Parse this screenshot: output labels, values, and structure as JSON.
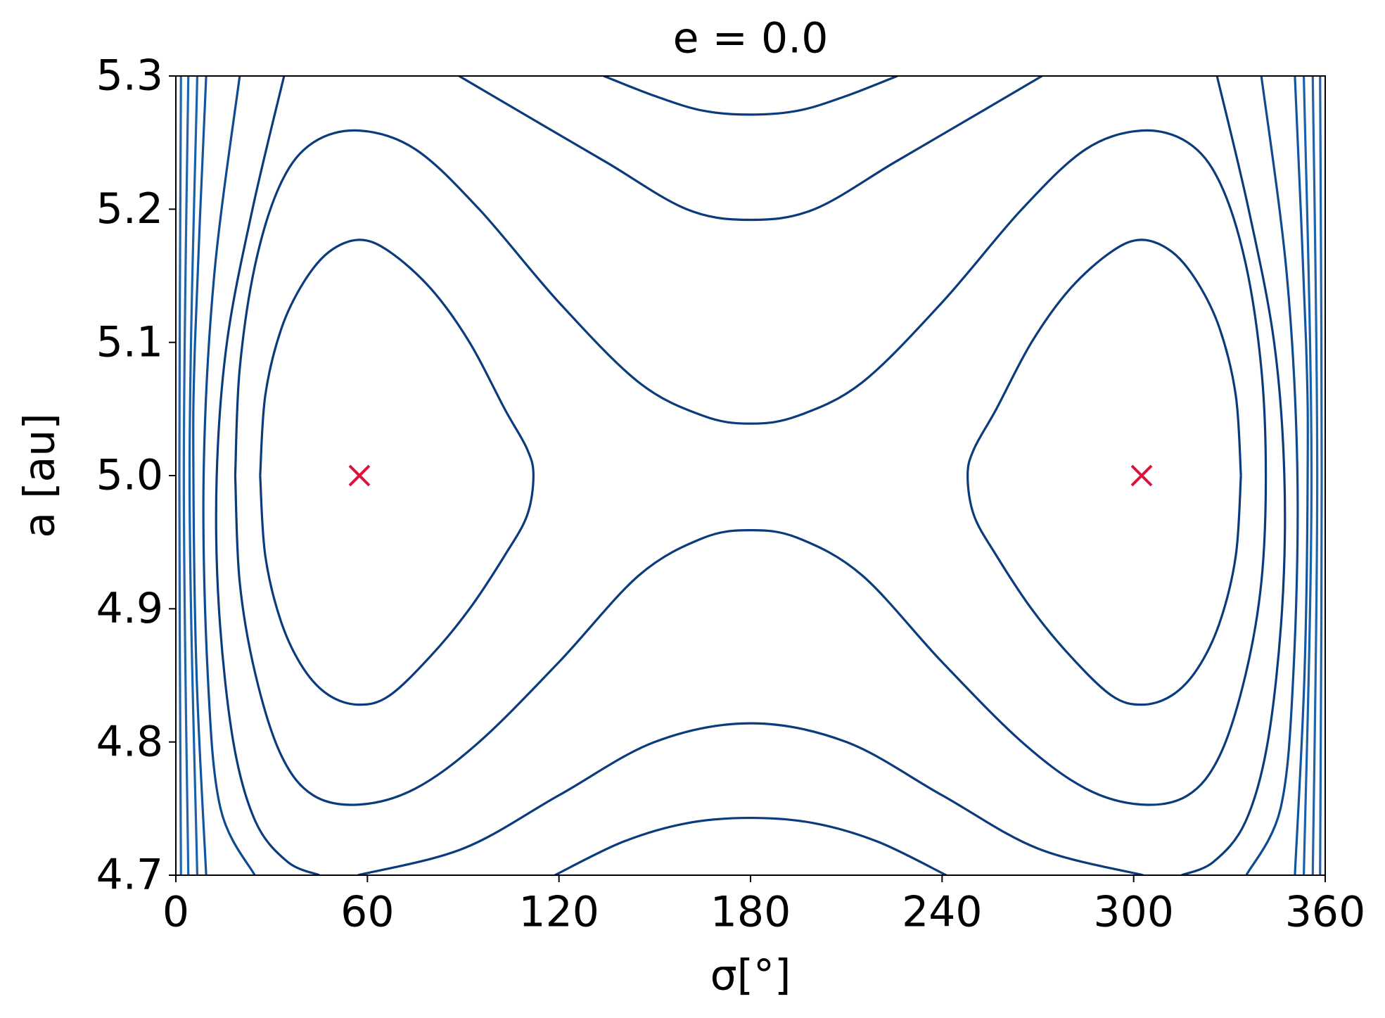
{
  "chart_data": {
    "type": "contour",
    "title": "e = 0.0",
    "xlabel": "σ[°]",
    "ylabel": "a [au]",
    "xlim": [
      0,
      360
    ],
    "ylim": [
      4.7,
      5.3
    ],
    "xticks": [
      0,
      60,
      120,
      180,
      240,
      300,
      360
    ],
    "yticks": [
      4.7,
      4.8,
      4.9,
      {
        "value": 5,
        "label": "5.0"
      },
      5.1,
      5.2,
      5.3
    ],
    "contours": [
      {
        "color": "#0a3b7c",
        "x": [
          26.4,
          28,
          33,
          40,
          48,
          57.5,
          67,
          80,
          92,
          103,
          110,
          112,
          110,
          103,
          92,
          80,
          67,
          57.5,
          48,
          40,
          33,
          28,
          26.4
        ],
        "y": [
          5.0,
          5.06,
          5.11,
          5.145,
          5.168,
          5.177,
          5.168,
          5.14,
          5.1,
          5.05,
          5.02,
          5.0,
          4.97,
          4.94,
          4.9,
          4.865,
          4.835,
          4.828,
          4.835,
          4.855,
          4.89,
          4.94,
          5.0
        ]
      },
      {
        "color": "#0a3b7c",
        "x": [
          333.6,
          332,
          327,
          320,
          312,
          302.5,
          293,
          280,
          268,
          257,
          250,
          248,
          250,
          257,
          268,
          280,
          293,
          302.5,
          312,
          320,
          327,
          332,
          333.6
        ],
        "y": [
          5.0,
          5.06,
          5.11,
          5.145,
          5.168,
          5.177,
          5.168,
          5.14,
          5.1,
          5.05,
          5.02,
          5.0,
          4.97,
          4.94,
          4.9,
          4.865,
          4.835,
          4.828,
          4.835,
          4.855,
          4.89,
          4.94,
          5.0
        ]
      },
      {
        "color": "#0a3b7c",
        "x": [
          18.6,
          20,
          25,
          33,
          43,
          57.5,
          75,
          95,
          120,
          145,
          165,
          180,
          195,
          215,
          240,
          265,
          285,
          302.5,
          317,
          327,
          335,
          340,
          341.4,
          340,
          335,
          327,
          317,
          302.5,
          285,
          265,
          240,
          215,
          195,
          180,
          165,
          145,
          120,
          95,
          75,
          57.5,
          43,
          33,
          25,
          20,
          18.6
        ],
        "y": [
          5.0,
          5.08,
          5.16,
          5.22,
          5.25,
          5.259,
          5.245,
          5.2,
          5.13,
          5.07,
          5.045,
          5.039,
          5.045,
          5.07,
          5.13,
          5.2,
          5.245,
          5.259,
          5.25,
          5.22,
          5.16,
          5.08,
          5.0,
          4.92,
          4.85,
          4.79,
          4.76,
          4.753,
          4.765,
          4.8,
          4.86,
          4.925,
          4.953,
          4.959,
          4.953,
          4.925,
          4.86,
          4.8,
          4.765,
          4.753,
          4.76,
          4.79,
          4.85,
          4.92,
          5.0
        ]
      },
      {
        "color": "#0a3b7c",
        "x": [
          88.7,
          110,
          135,
          160,
          180,
          200,
          225,
          250,
          271.3
        ],
        "y": [
          5.3,
          5.27,
          5.235,
          5.2,
          5.192,
          5.2,
          5.235,
          5.27,
          5.3
        ]
      },
      {
        "color": "#0a3b7c",
        "x": [
          134,
          150,
          165,
          180,
          195,
          210,
          226
        ],
        "y": [
          5.3,
          5.285,
          5.274,
          5.271,
          5.274,
          5.285,
          5.3
        ]
      },
      {
        "color": "#0a3b7c",
        "x": [
          118.7,
          140,
          160,
          180,
          200,
          220,
          241.3
        ],
        "y": [
          4.7,
          4.725,
          4.739,
          4.743,
          4.739,
          4.725,
          4.7
        ]
      },
      {
        "color": "#0a3b7c",
        "x": [
          57,
          90,
          120,
          150,
          180,
          210,
          240,
          270,
          303
        ],
        "y": [
          4.7,
          4.72,
          4.76,
          4.8,
          4.814,
          4.8,
          4.76,
          4.72,
          4.7
        ]
      },
      {
        "color": "#0a3b7c",
        "x": [
          33.9,
          24,
          16,
          12.8,
          13.5,
          18,
          25,
          35,
          45
        ],
        "y": [
          5.3,
          5.2,
          5.1,
          5.0,
          4.9,
          4.8,
          4.74,
          4.71,
          4.7
        ]
      },
      {
        "color": "#0a3b7c",
        "x": [
          326.1,
          336,
          344,
          347.2,
          346.5,
          342,
          335,
          325,
          315
        ],
        "y": [
          5.3,
          5.2,
          5.1,
          5.0,
          4.9,
          4.8,
          4.74,
          4.71,
          4.7
        ]
      },
      {
        "color": "#0d4a8f",
        "x": [
          20,
          12,
          8.7,
          10,
          14,
          24.7
        ],
        "y": [
          5.3,
          5.15,
          5.0,
          4.85,
          4.75,
          4.7
        ]
      },
      {
        "color": "#0d4a8f",
        "x": [
          340,
          348,
          351.3,
          350,
          346,
          335.3
        ],
        "y": [
          5.3,
          5.15,
          5.0,
          4.85,
          4.75,
          4.7
        ]
      },
      {
        "color": "#12569f",
        "x": [
          9.5,
          6,
          5.5,
          6.5,
          9.5
        ],
        "y": [
          5.3,
          5.1,
          5.0,
          4.85,
          4.7
        ]
      },
      {
        "color": "#12569f",
        "x": [
          350.5,
          354,
          354.5,
          353.5,
          350.5
        ],
        "y": [
          5.3,
          5.1,
          5.0,
          4.85,
          4.7
        ]
      },
      {
        "color": "#1a62ab",
        "x": [
          6.7,
          4.3,
          6.7
        ],
        "y": [
          5.3,
          5.0,
          4.7
        ]
      },
      {
        "color": "#1a62ab",
        "x": [
          353.3,
          355.7,
          353.3
        ],
        "y": [
          5.3,
          5.0,
          4.7
        ]
      },
      {
        "color": "#2166ac",
        "x": [
          3.9,
          2.5,
          3.9
        ],
        "y": [
          5.3,
          5.0,
          4.7
        ]
      },
      {
        "color": "#2166ac",
        "x": [
          356.1,
          357.5,
          356.1
        ],
        "y": [
          5.3,
          5.0,
          4.7
        ]
      },
      {
        "color": "#2166ac",
        "x": [
          1.6,
          1.1,
          1.6
        ],
        "y": [
          5.3,
          5.0,
          4.7
        ]
      },
      {
        "color": "#2166ac",
        "x": [
          358.4,
          358.9,
          358.4
        ],
        "y": [
          5.3,
          5.0,
          4.7
        ]
      }
    ],
    "markers": {
      "marker": "x",
      "color": "#dc143c",
      "x": [
        57.5,
        302.5
      ],
      "y": [
        5,
        5
      ]
    }
  }
}
